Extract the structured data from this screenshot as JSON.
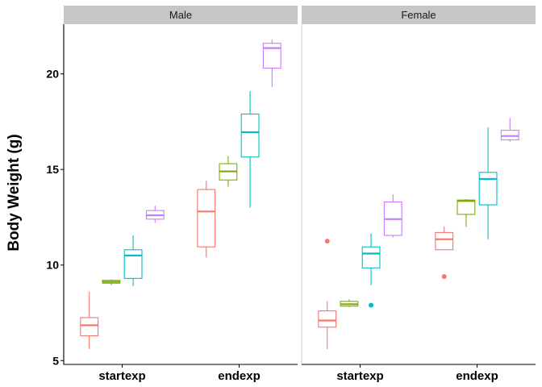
{
  "chart_data": {
    "type": "boxplot",
    "ylabel": "Body Weight (g)",
    "ylim": [
      4.8,
      22.6
    ],
    "yticks": [
      5,
      10,
      15,
      20
    ],
    "categories": [
      "startexp",
      "endexp"
    ],
    "groups": [
      "g1",
      "g2",
      "g3",
      "g4"
    ],
    "colors": [
      "#F8766D",
      "#7CAE00",
      "#00BFC4",
      "#C77CFF"
    ],
    "legend": "none",
    "grid": false,
    "panels": [
      {
        "name": "Male",
        "boxes": [
          {
            "category": "startexp",
            "group": 0,
            "whisker_low": 5.6,
            "q1": 6.3,
            "median": 6.85,
            "q3": 7.25,
            "whisker_high": 8.6,
            "outliers": []
          },
          {
            "category": "startexp",
            "group": 1,
            "whisker_low": 8.95,
            "q1": 9.05,
            "median": 9.12,
            "q3": 9.2,
            "whisker_high": 9.25,
            "outliers": []
          },
          {
            "category": "startexp",
            "group": 2,
            "whisker_low": 8.9,
            "q1": 9.3,
            "median": 10.5,
            "q3": 10.8,
            "whisker_high": 11.55,
            "outliers": []
          },
          {
            "category": "startexp",
            "group": 3,
            "whisker_low": 12.2,
            "q1": 12.4,
            "median": 12.6,
            "q3": 12.85,
            "whisker_high": 13.1,
            "outliers": []
          },
          {
            "category": "endexp",
            "group": 0,
            "whisker_low": 10.4,
            "q1": 10.95,
            "median": 12.8,
            "q3": 13.95,
            "whisker_high": 14.4,
            "outliers": []
          },
          {
            "category": "endexp",
            "group": 1,
            "whisker_low": 14.1,
            "q1": 14.45,
            "median": 14.9,
            "q3": 15.3,
            "whisker_high": 15.7,
            "outliers": []
          },
          {
            "category": "endexp",
            "group": 2,
            "whisker_low": 13.0,
            "q1": 15.65,
            "median": 16.95,
            "q3": 17.9,
            "whisker_high": 19.1,
            "outliers": []
          },
          {
            "category": "endexp",
            "group": 3,
            "whisker_low": 19.3,
            "q1": 20.3,
            "median": 21.35,
            "q3": 21.6,
            "whisker_high": 21.8,
            "outliers": []
          }
        ]
      },
      {
        "name": "Female",
        "boxes": [
          {
            "category": "startexp",
            "group": 0,
            "whisker_low": 5.6,
            "q1": 6.75,
            "median": 7.1,
            "q3": 7.6,
            "whisker_high": 8.1,
            "outliers": [
              11.25
            ]
          },
          {
            "category": "startexp",
            "group": 1,
            "whisker_low": 7.8,
            "q1": 7.85,
            "median": 7.95,
            "q3": 8.1,
            "whisker_high": 8.2,
            "outliers": []
          },
          {
            "category": "startexp",
            "group": 2,
            "whisker_low": 8.95,
            "q1": 9.85,
            "median": 10.6,
            "q3": 10.95,
            "whisker_high": 11.65,
            "outliers": [
              7.9
            ]
          },
          {
            "category": "startexp",
            "group": 3,
            "whisker_low": 11.45,
            "q1": 11.55,
            "median": 12.4,
            "q3": 13.3,
            "whisker_high": 13.7,
            "outliers": []
          },
          {
            "category": "endexp",
            "group": 0,
            "whisker_low": 10.8,
            "q1": 10.8,
            "median": 11.35,
            "q3": 11.7,
            "whisker_high": 12.0,
            "outliers": [
              9.4
            ]
          },
          {
            "category": "endexp",
            "group": 1,
            "whisker_low": 12.0,
            "q1": 12.65,
            "median": 13.35,
            "q3": 13.4,
            "whisker_high": 13.45,
            "outliers": []
          },
          {
            "category": "endexp",
            "group": 2,
            "whisker_low": 11.35,
            "q1": 13.15,
            "median": 14.5,
            "q3": 14.85,
            "whisker_high": 17.2,
            "outliers": []
          },
          {
            "category": "endexp",
            "group": 3,
            "whisker_low": 16.45,
            "q1": 16.55,
            "median": 16.75,
            "q3": 17.05,
            "whisker_high": 17.7,
            "outliers": []
          }
        ]
      }
    ]
  }
}
